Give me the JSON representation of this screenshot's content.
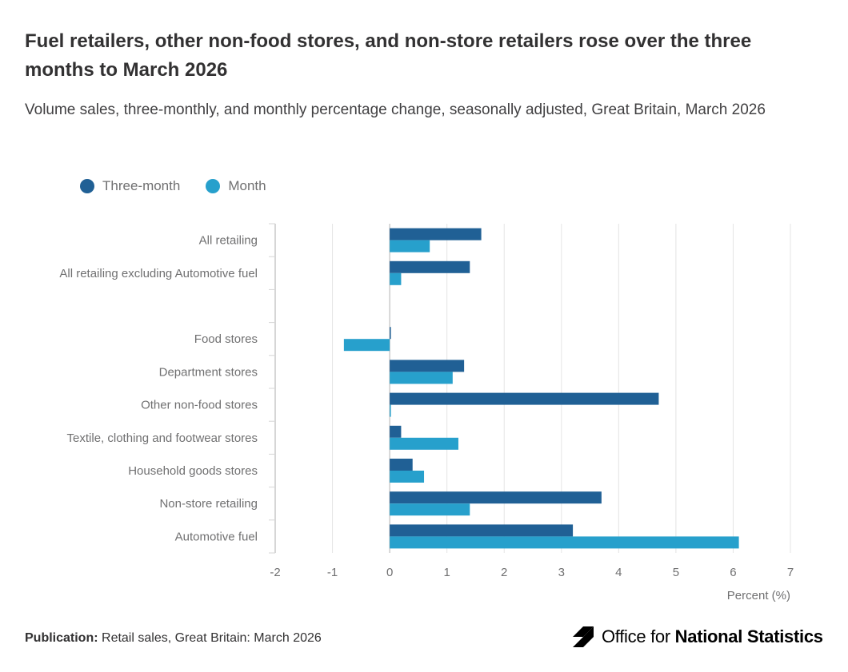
{
  "title": "Fuel retailers, other non-food stores, and non-store retailers rose over the three months to March 2026",
  "subtitle": "Volume sales, three-monthly, and monthly percentage change, seasonally adjusted, Great Britain, March 2026",
  "legend": [
    {
      "label": "Three-month",
      "color": "#206095"
    },
    {
      "label": "Month",
      "color": "#27a0cc"
    }
  ],
  "footer": {
    "publication_label": "Publication:",
    "publication_text": " Retail sales, Great Britain: March 2026"
  },
  "logo": {
    "text_light": "Office for ",
    "text_bold": "National Statistics",
    "icon": "ons-logo-icon"
  },
  "chart_data": {
    "type": "bar",
    "orientation": "horizontal",
    "categories": [
      "All retailing",
      "All retailing excluding Automotive fuel",
      "",
      "Food stores",
      "Department stores",
      "Other non-food stores",
      "Textile, clothing and footwear stores",
      "Household goods stores",
      "Non-store retailing",
      "Automotive fuel"
    ],
    "series": [
      {
        "name": "Three-month",
        "color": "#206095",
        "values": [
          1.6,
          1.4,
          null,
          0.0,
          1.3,
          4.7,
          0.2,
          0.4,
          3.7,
          3.2
        ]
      },
      {
        "name": "Month",
        "color": "#27a0cc",
        "values": [
          0.7,
          0.2,
          null,
          -0.8,
          1.1,
          0.0,
          1.2,
          0.6,
          1.4,
          6.1
        ]
      }
    ],
    "xlim": [
      -2,
      7
    ],
    "xticks": [
      -2,
      -1,
      0,
      1,
      2,
      3,
      4,
      5,
      6,
      7
    ],
    "xlabel": "Percent (%)",
    "grid": true,
    "legend_position": "top-left"
  }
}
